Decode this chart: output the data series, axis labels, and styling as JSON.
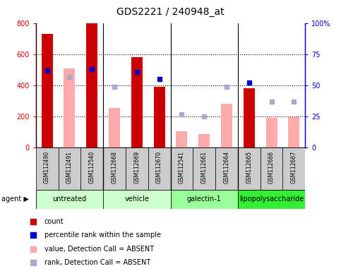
{
  "title": "GDS2221 / 240948_at",
  "samples": [
    "GSM112490",
    "GSM112491",
    "GSM112540",
    "GSM112668",
    "GSM112669",
    "GSM112670",
    "GSM112541",
    "GSM112661",
    "GSM112664",
    "GSM112665",
    "GSM112666",
    "GSM112667"
  ],
  "count_values": [
    730,
    null,
    800,
    null,
    580,
    390,
    null,
    null,
    null,
    380,
    null,
    null
  ],
  "absent_values": [
    null,
    510,
    null,
    255,
    null,
    null,
    105,
    88,
    280,
    null,
    192,
    198
  ],
  "rank_pct_present": [
    62,
    null,
    63,
    null,
    61,
    55,
    null,
    null,
    null,
    52,
    null,
    null
  ],
  "rank_pct_absent": [
    null,
    57,
    null,
    49,
    null,
    null,
    27,
    25,
    49,
    null,
    37,
    37
  ],
  "ylim_left": [
    0,
    800
  ],
  "ylim_right": [
    0,
    100
  ],
  "yticks_left": [
    0,
    200,
    400,
    600,
    800
  ],
  "yticks_right": [
    0,
    25,
    50,
    75,
    100
  ],
  "yticklabels_right": [
    "0",
    "25",
    "50",
    "75",
    "100%"
  ],
  "color_count": "#cc0000",
  "color_rank_present": "#0000cc",
  "color_absent_value": "#ffaaaa",
  "color_absent_rank": "#aaaacc",
  "bg_plot": "#ffffff",
  "bg_sample_row": "#cccccc",
  "group_boundaries": [
    2.5,
    5.5,
    8.5
  ],
  "group_info": [
    {
      "label": "untreated",
      "xmin": -0.5,
      "xmax": 2.5,
      "color": "#ccffcc"
    },
    {
      "label": "vehicle",
      "xmin": 2.5,
      "xmax": 5.5,
      "color": "#ccffcc"
    },
    {
      "label": "galectin-1",
      "xmin": 5.5,
      "xmax": 8.5,
      "color": "#99ff99"
    },
    {
      "label": "lipopolysaccharide",
      "xmin": 8.5,
      "xmax": 11.5,
      "color": "#33ee33"
    }
  ],
  "legend_items": [
    {
      "color": "#cc0000",
      "label": "count"
    },
    {
      "color": "#0000cc",
      "label": "percentile rank within the sample"
    },
    {
      "color": "#ffaaaa",
      "label": "value, Detection Call = ABSENT"
    },
    {
      "color": "#aaaacc",
      "label": "rank, Detection Call = ABSENT"
    }
  ]
}
